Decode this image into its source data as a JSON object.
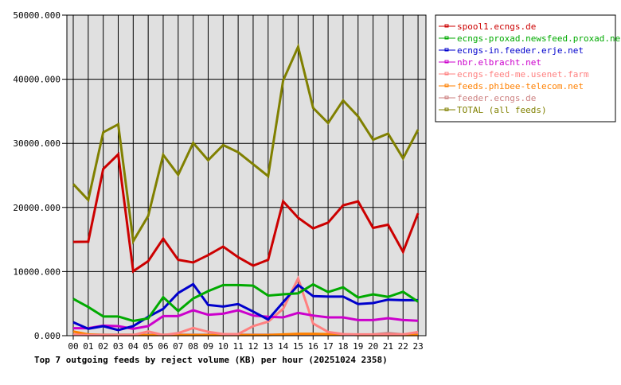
{
  "chart_data": {
    "type": "line",
    "title": "Top 7 outgoing feeds by reject volume (KB) per hour (20251024 2358)",
    "categories": [
      "00",
      "01",
      "02",
      "03",
      "04",
      "05",
      "06",
      "07",
      "08",
      "09",
      "10",
      "11",
      "12",
      "13",
      "14",
      "15",
      "16",
      "17",
      "18",
      "19",
      "20",
      "21",
      "22",
      "23"
    ],
    "ylim": [
      0,
      50000
    ],
    "yticks": [
      "0.000",
      "10000.000",
      "20000.000",
      "30000.000",
      "40000.000",
      "50000.000"
    ],
    "grid": true,
    "legend_position": "right",
    "series": [
      {
        "name": "spool1.ecngs.de",
        "color": "#cc0000",
        "values": [
          14620,
          14660,
          26000,
          28280,
          10050,
          11630,
          15130,
          11830,
          11420,
          12570,
          13900,
          12240,
          10920,
          11830,
          20950,
          18390,
          16730,
          17640,
          20330,
          20950,
          16810,
          17310,
          13080,
          19090
        ]
      },
      {
        "name": "ecngs-proxad.newsfeed.proxad.net",
        "color": "#00aa00",
        "values": [
          5750,
          4470,
          3000,
          3000,
          2300,
          2700,
          6000,
          3850,
          5800,
          6950,
          7900,
          7900,
          7800,
          6250,
          6450,
          6600,
          8000,
          6800,
          7550,
          5950,
          6450,
          6050,
          6850,
          5300
        ]
      },
      {
        "name": "ecngs-in.feeder.erje.net",
        "color": "#0000cc",
        "values": [
          2100,
          1070,
          1490,
          870,
          1490,
          2940,
          4180,
          6660,
          8030,
          4800,
          4550,
          4930,
          3760,
          2520,
          5210,
          7900,
          6170,
          6100,
          6100,
          4930,
          5090,
          5620,
          5540,
          5540
        ]
      },
      {
        "name": "nbr.elbracht.net",
        "color": "#cc00cc",
        "values": [
          1160,
          1160,
          1570,
          1490,
          1070,
          1490,
          3060,
          3060,
          3970,
          3260,
          3430,
          3970,
          3140,
          2940,
          2850,
          3560,
          3140,
          2850,
          2850,
          2440,
          2440,
          2730,
          2440,
          2320
        ]
      },
      {
        "name": "ecngs-feed-me.usenet.farm",
        "color": "#ff8080",
        "values": [
          150,
          100,
          100,
          100,
          100,
          660,
          100,
          400,
          1200,
          600,
          250,
          250,
          1490,
          2190,
          4180,
          8930,
          1900,
          580,
          250,
          200,
          200,
          200,
          200,
          580
        ]
      },
      {
        "name": "feeds.phibee-telecom.net",
        "color": "#ff8000",
        "values": [
          650,
          200,
          100,
          100,
          100,
          100,
          100,
          100,
          100,
          100,
          100,
          100,
          100,
          100,
          200,
          300,
          300,
          250,
          200,
          100,
          100,
          100,
          100,
          100
        ]
      },
      {
        "name": "feeder.ecngs.de",
        "color": "#cc8080",
        "values": [
          150,
          150,
          150,
          150,
          150,
          150,
          150,
          150,
          150,
          150,
          150,
          150,
          150,
          150,
          150,
          150,
          150,
          150,
          150,
          150,
          200,
          400,
          200,
          400
        ]
      },
      {
        "name": "TOTAL (all feeds)",
        "color": "#808000",
        "values": [
          23640,
          21160,
          31720,
          32960,
          14740,
          18680,
          28200,
          25090,
          30060,
          27370,
          29730,
          28610,
          26750,
          24880,
          39790,
          45050,
          35530,
          33170,
          36690,
          34200,
          30560,
          31510,
          27660,
          32130
        ]
      }
    ]
  }
}
